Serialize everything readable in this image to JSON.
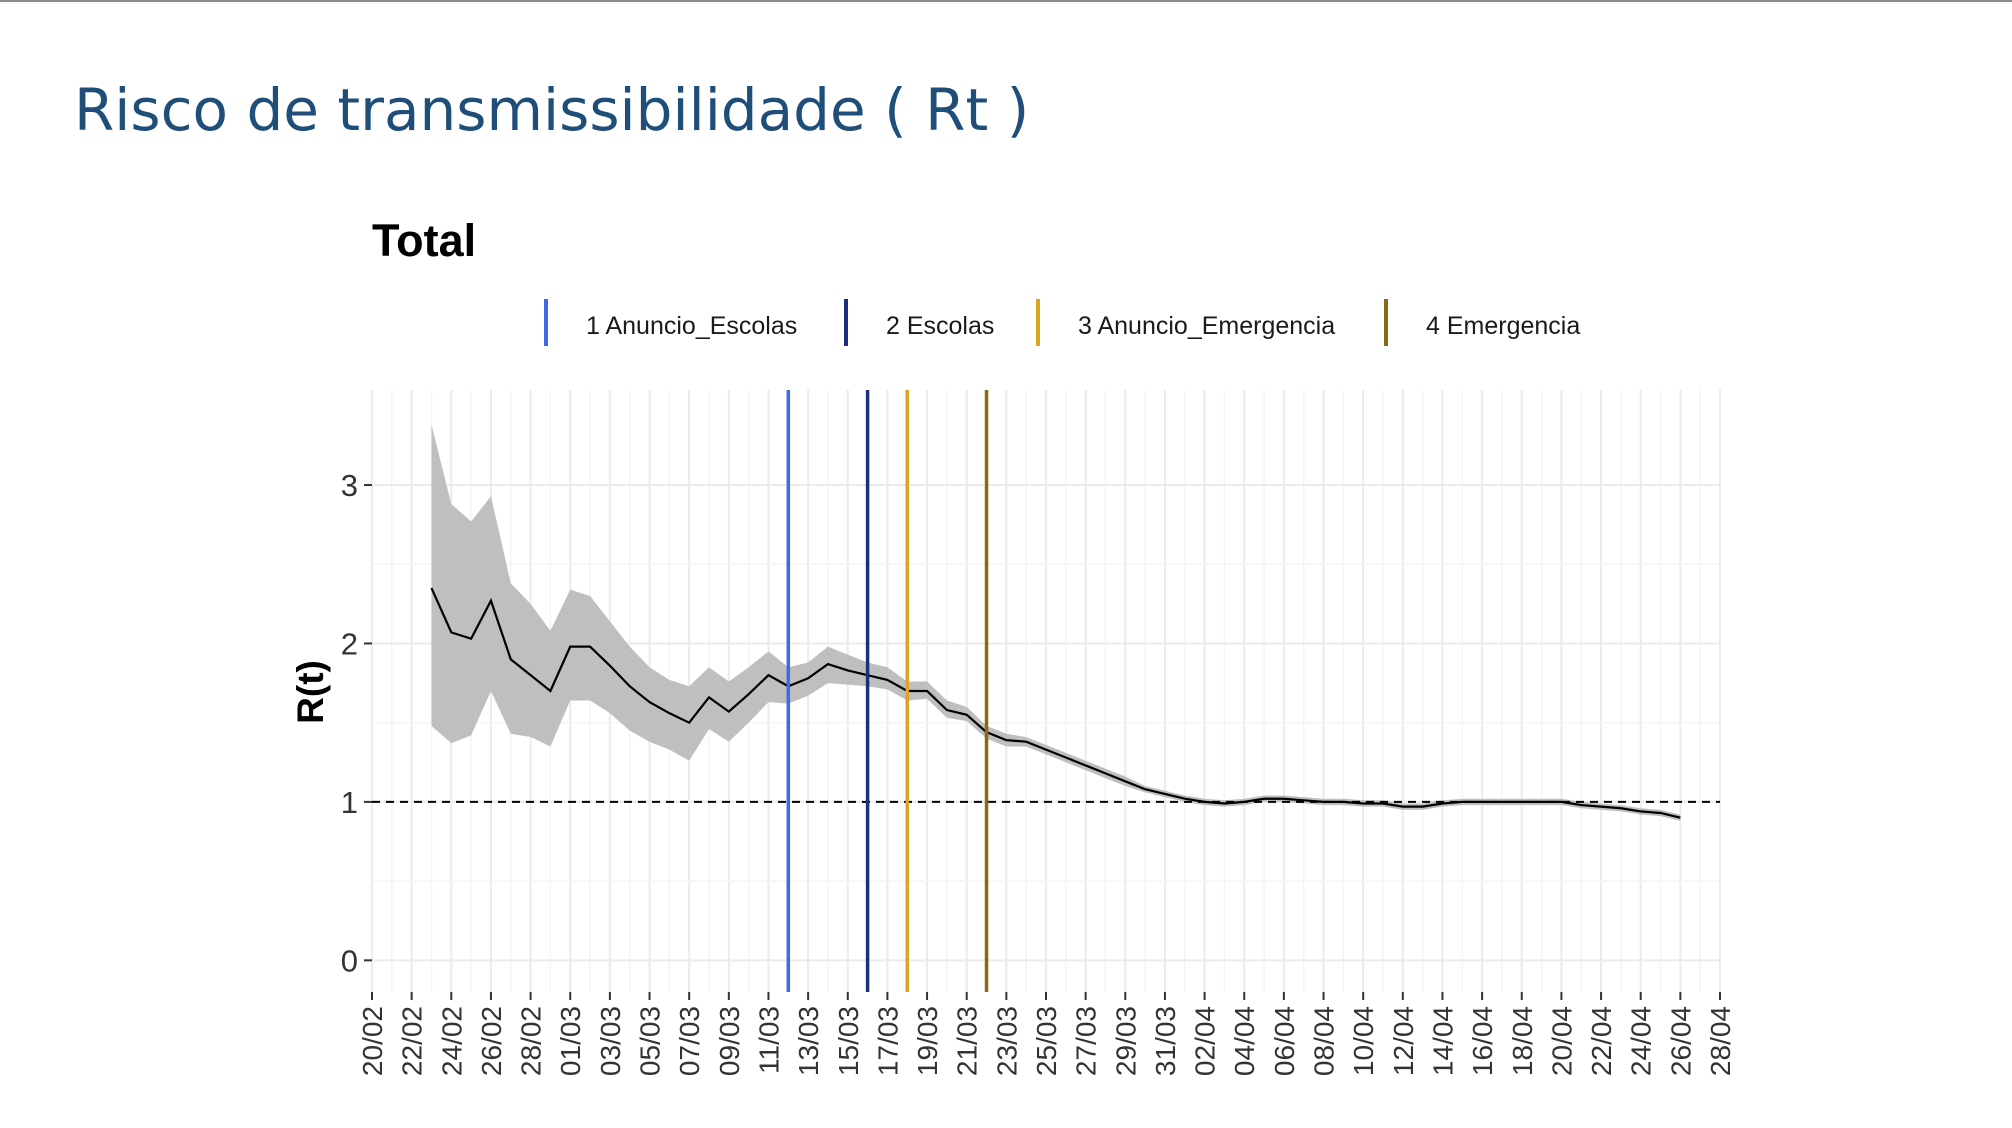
{
  "slide": {
    "title": "Risco de transmissibilidade ( Rt )"
  },
  "chart_data": {
    "type": "line",
    "title": "Total",
    "xlabel": "",
    "ylabel": "R(t)",
    "ylim": [
      -0.2,
      3.6
    ],
    "yticks": [
      0,
      1,
      2,
      3
    ],
    "x_start": "20/02",
    "x_end": "28/04",
    "xtick_labels": [
      "20/02",
      "22/02",
      "24/02",
      "26/02",
      "28/02",
      "01/03",
      "03/03",
      "05/03",
      "07/03",
      "09/03",
      "11/03",
      "13/03",
      "15/03",
      "17/03",
      "19/03",
      "21/03",
      "23/03",
      "25/03",
      "27/03",
      "29/03",
      "31/03",
      "02/04",
      "04/04",
      "06/04",
      "08/04",
      "10/04",
      "12/04",
      "14/04",
      "16/04",
      "18/04",
      "20/04",
      "22/04",
      "24/04",
      "26/04",
      "28/04"
    ],
    "grid": true,
    "reference_line": {
      "y": 1,
      "style": "dashed"
    },
    "series": [
      {
        "color": "#000000",
        "ribbon_color": "#bfbfbf",
        "x": [
          "23/02",
          "24/02",
          "25/02",
          "26/02",
          "27/02",
          "28/02",
          "29/02",
          "01/03",
          "02/03",
          "03/03",
          "04/03",
          "05/03",
          "06/03",
          "07/03",
          "08/03",
          "09/03",
          "10/03",
          "11/03",
          "12/03",
          "13/03",
          "14/03",
          "15/03",
          "16/03",
          "17/03",
          "18/03",
          "19/03",
          "20/03",
          "21/03",
          "22/03",
          "23/03",
          "24/03",
          "25/03",
          "26/03",
          "27/03",
          "28/03",
          "29/03",
          "30/03",
          "31/03",
          "01/04",
          "02/04",
          "03/04",
          "04/04",
          "05/04",
          "06/04",
          "07/04",
          "08/04",
          "09/04",
          "10/04",
          "11/04",
          "12/04",
          "13/04",
          "14/04",
          "15/04",
          "16/04",
          "17/04",
          "18/04",
          "19/04",
          "20/04",
          "21/04",
          "22/04",
          "23/04",
          "24/04",
          "25/04",
          "26/04"
        ],
        "y": [
          2.35,
          2.07,
          2.03,
          2.27,
          1.9,
          1.8,
          1.7,
          1.98,
          1.98,
          1.86,
          1.73,
          1.63,
          1.56,
          1.5,
          1.66,
          1.57,
          1.68,
          1.8,
          1.73,
          1.78,
          1.87,
          1.83,
          1.8,
          1.77,
          1.7,
          1.7,
          1.58,
          1.55,
          1.44,
          1.39,
          1.38,
          1.33,
          1.28,
          1.23,
          1.18,
          1.13,
          1.08,
          1.05,
          1.02,
          1.0,
          0.99,
          1.0,
          1.02,
          1.02,
          1.01,
          1.0,
          1.0,
          0.99,
          0.99,
          0.97,
          0.97,
          0.99,
          1.0,
          1.0,
          1.0,
          1.0,
          1.0,
          1.0,
          0.98,
          0.97,
          0.96,
          0.94,
          0.93,
          0.9
        ],
        "lower": [
          1.48,
          1.37,
          1.42,
          1.7,
          1.43,
          1.41,
          1.35,
          1.64,
          1.64,
          1.56,
          1.45,
          1.38,
          1.33,
          1.26,
          1.46,
          1.38,
          1.5,
          1.63,
          1.62,
          1.67,
          1.75,
          1.74,
          1.73,
          1.71,
          1.64,
          1.65,
          1.53,
          1.51,
          1.4,
          1.35,
          1.35,
          1.3,
          1.25,
          1.2,
          1.15,
          1.1,
          1.06,
          1.03,
          1.0,
          0.98,
          0.97,
          0.98,
          1.0,
          1.0,
          0.99,
          0.98,
          0.98,
          0.97,
          0.97,
          0.95,
          0.95,
          0.97,
          0.98,
          0.98,
          0.98,
          0.98,
          0.98,
          0.98,
          0.96,
          0.95,
          0.94,
          0.92,
          0.91,
          0.88
        ],
        "upper": [
          3.38,
          2.88,
          2.77,
          2.93,
          2.38,
          2.25,
          2.08,
          2.34,
          2.3,
          2.14,
          1.98,
          1.85,
          1.77,
          1.73,
          1.85,
          1.76,
          1.85,
          1.95,
          1.85,
          1.88,
          1.98,
          1.93,
          1.88,
          1.85,
          1.76,
          1.76,
          1.64,
          1.6,
          1.48,
          1.43,
          1.41,
          1.36,
          1.31,
          1.26,
          1.21,
          1.16,
          1.1,
          1.07,
          1.04,
          1.02,
          1.01,
          1.02,
          1.04,
          1.04,
          1.03,
          1.02,
          1.02,
          1.01,
          1.01,
          0.99,
          0.99,
          1.01,
          1.02,
          1.02,
          1.02,
          1.02,
          1.02,
          1.02,
          1.0,
          0.99,
          0.98,
          0.96,
          0.95,
          0.92
        ]
      }
    ],
    "events": [
      {
        "label": "1 Anuncio_Escolas",
        "x": "12/03",
        "color": "#4169e1"
      },
      {
        "label": "2 Escolas",
        "x": "16/03",
        "color": "#1c2f7a"
      },
      {
        "label": "3 Anuncio_Emergencia",
        "x": "18/03",
        "color": "#daa520"
      },
      {
        "label": "4 Emergencia",
        "x": "22/03",
        "color": "#8b6914"
      }
    ],
    "legend_position": "top"
  }
}
